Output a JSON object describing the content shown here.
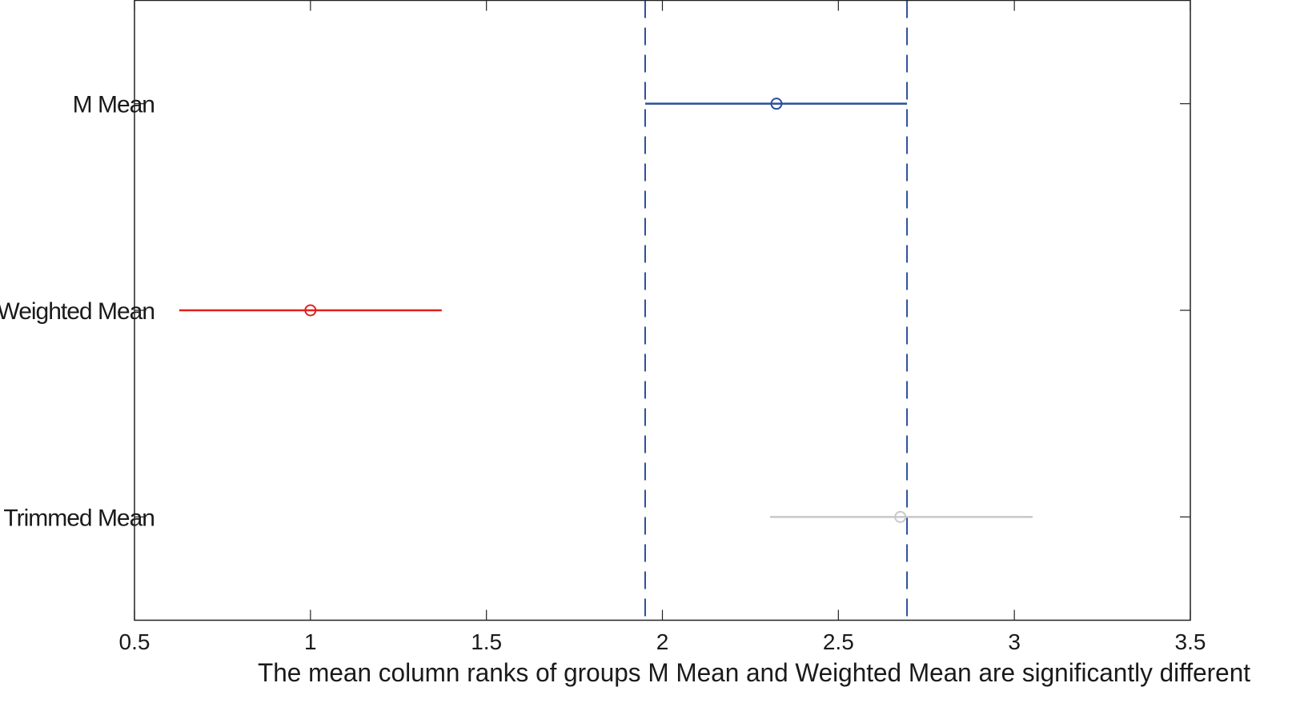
{
  "chart_data": {
    "type": "interval",
    "title": "",
    "xlabel": "The mean column ranks of groups M Mean and Weighted Mean are significantly different",
    "ylabel": "",
    "xlim": [
      0.5,
      3.5
    ],
    "xticks": [
      0.5,
      1,
      1.5,
      2,
      2.5,
      3,
      3.5
    ],
    "xtick_labels": [
      "0.5",
      "1",
      "1.5",
      "2",
      "2.5",
      "3",
      "3.5"
    ],
    "grid": false,
    "groups": [
      {
        "name": "M Mean",
        "estimate": 2.324,
        "lower": 1.951,
        "upper": 2.695,
        "color": "#2b4f9a"
      },
      {
        "name": "Weighted Mean",
        "estimate": 1.0,
        "lower": 0.627,
        "upper": 1.373,
        "color": "#e0201b"
      },
      {
        "name": "Trimmed Mean",
        "estimate": 2.676,
        "lower": 2.306,
        "upper": 3.052,
        "color": "#c8c8c8"
      }
    ],
    "reference_lines": {
      "values": [
        1.951,
        2.695
      ],
      "style": "dashed",
      "color": "#2b4f9a"
    }
  }
}
